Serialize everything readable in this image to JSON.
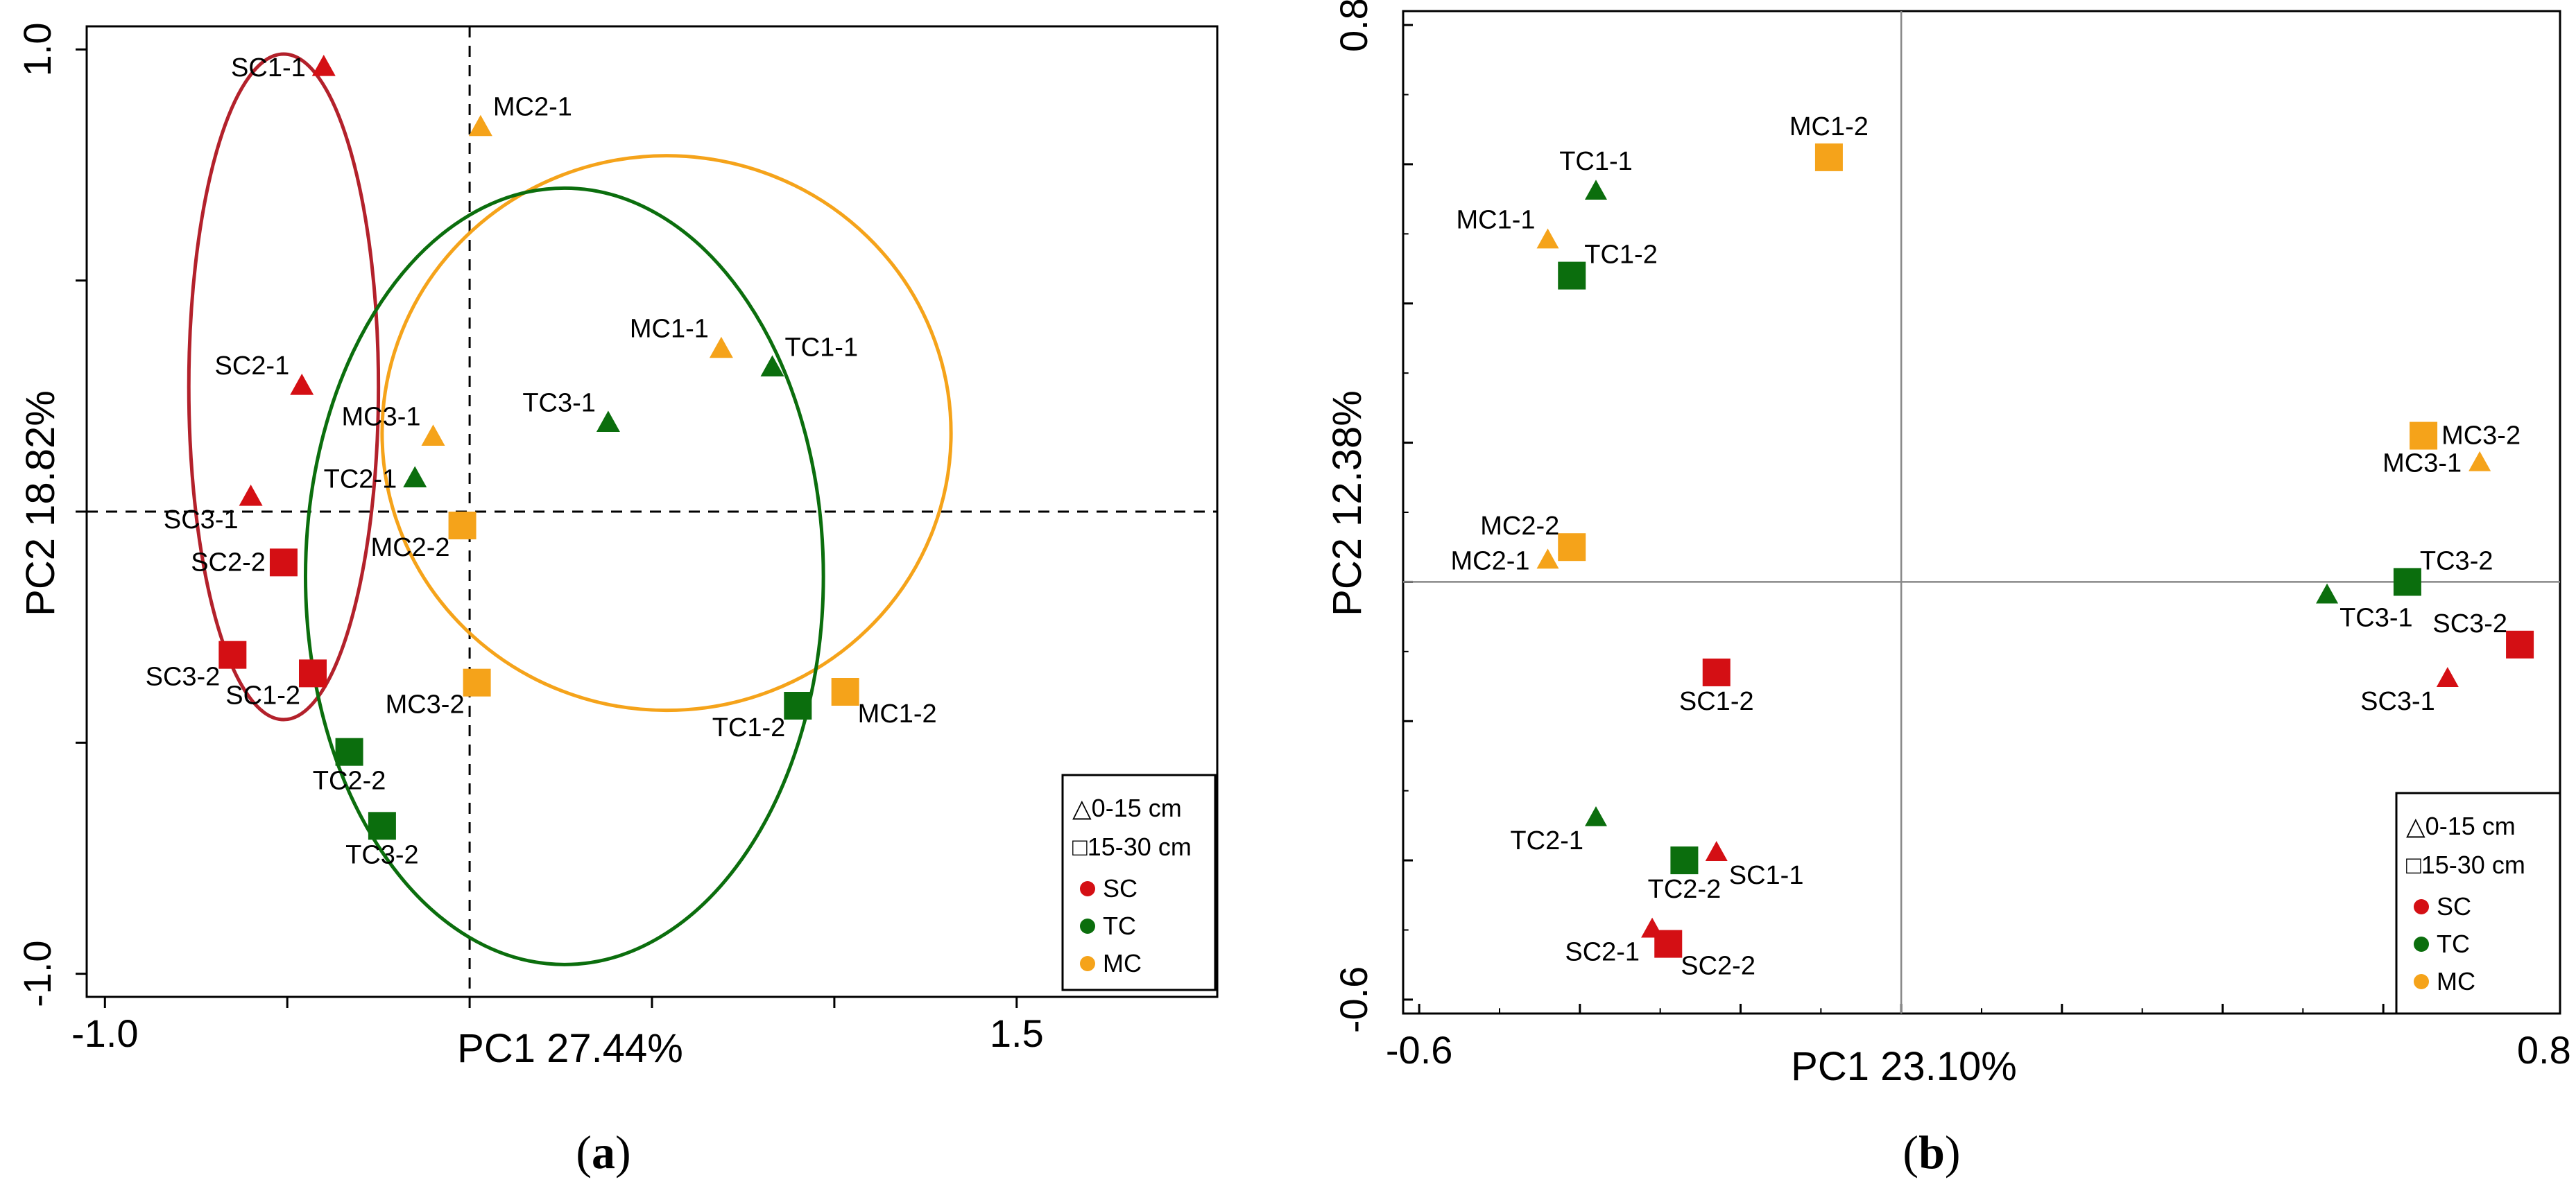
{
  "colors": {
    "SC": "#d40f14",
    "TC": "#0b6e0d",
    "MC": "#f5a31a"
  },
  "chart_data": [
    {
      "panel": "a",
      "panel_label": "a",
      "type": "scatter",
      "xlabel": "PC1 27.44%",
      "ylabel": "PC2 18.82%",
      "xlim": [
        -1.05,
        2.05
      ],
      "ylim": [
        -1.05,
        1.05
      ],
      "xticks": [
        -1.0,
        -0.5,
        0.0,
        0.5,
        1.0,
        1.5
      ],
      "yticks": [
        -1.0,
        -0.5,
        0.0,
        0.5,
        1.0
      ],
      "xtick_labels": [
        {
          "value": -1.0,
          "label": "-1.0"
        },
        {
          "value": 1.5,
          "label": "1.5"
        }
      ],
      "ytick_labels": [
        {
          "value": 1.0,
          "label": "1.0"
        },
        {
          "value": -1.0,
          "label": "-1.0"
        }
      ],
      "reference_lines": {
        "x": 0.0,
        "y": 0.0,
        "style": "dashed"
      },
      "ellipses": [
        {
          "group": "SC",
          "cx": -0.51,
          "cy": 0.27,
          "rx": 0.26,
          "ry": 0.72
        },
        {
          "group": "MC",
          "cx": 0.54,
          "cy": 0.17,
          "rx": 0.78,
          "ry": 0.6
        },
        {
          "group": "TC",
          "cx": 0.26,
          "cy": -0.14,
          "rx": 0.71,
          "ry": 0.84
        }
      ],
      "points": [
        {
          "label": "SC1-1",
          "group": "SC",
          "depth": "0-15 cm",
          "marker": "triangle",
          "x": -0.4,
          "y": 0.96,
          "label_pos": "left"
        },
        {
          "label": "SC2-1",
          "group": "SC",
          "depth": "0-15 cm",
          "marker": "triangle",
          "x": -0.46,
          "y": 0.27,
          "label_pos": "upleft"
        },
        {
          "label": "SC3-1",
          "group": "SC",
          "depth": "0-15 cm",
          "marker": "triangle",
          "x": -0.6,
          "y": 0.03,
          "label_pos": "downleft"
        },
        {
          "label": "SC2-2",
          "group": "SC",
          "depth": "15-30 cm",
          "marker": "square",
          "x": -0.51,
          "y": -0.11,
          "label_pos": "left"
        },
        {
          "label": "SC3-2",
          "group": "SC",
          "depth": "15-30 cm",
          "marker": "square",
          "x": -0.65,
          "y": -0.31,
          "label_pos": "downleft"
        },
        {
          "label": "SC1-2",
          "group": "SC",
          "depth": "15-30 cm",
          "marker": "square",
          "x": -0.43,
          "y": -0.35,
          "label_pos": "downleft"
        },
        {
          "label": "TC2-1",
          "group": "TC",
          "depth": "0-15 cm",
          "marker": "triangle",
          "x": -0.15,
          "y": 0.07,
          "label_pos": "left"
        },
        {
          "label": "TC3-1",
          "group": "TC",
          "depth": "0-15 cm",
          "marker": "triangle",
          "x": 0.38,
          "y": 0.19,
          "label_pos": "upleft"
        },
        {
          "label": "TC1-1",
          "group": "TC",
          "depth": "0-15 cm",
          "marker": "triangle",
          "x": 0.83,
          "y": 0.31,
          "label_pos": "upright"
        },
        {
          "label": "TC2-2",
          "group": "TC",
          "depth": "15-30 cm",
          "marker": "square",
          "x": -0.33,
          "y": -0.52,
          "label_pos": "below"
        },
        {
          "label": "TC3-2",
          "group": "TC",
          "depth": "15-30 cm",
          "marker": "square",
          "x": -0.24,
          "y": -0.68,
          "label_pos": "below"
        },
        {
          "label": "TC1-2",
          "group": "TC",
          "depth": "15-30 cm",
          "marker": "square",
          "x": 0.9,
          "y": -0.42,
          "label_pos": "downleft"
        },
        {
          "label": "MC2-1",
          "group": "MC",
          "depth": "0-15 cm",
          "marker": "triangle",
          "x": 0.03,
          "y": 0.83,
          "label_pos": "upright"
        },
        {
          "label": "MC3-1",
          "group": "MC",
          "depth": "0-15 cm",
          "marker": "triangle",
          "x": -0.1,
          "y": 0.16,
          "label_pos": "upleft"
        },
        {
          "label": "MC1-1",
          "group": "MC",
          "depth": "0-15 cm",
          "marker": "triangle",
          "x": 0.69,
          "y": 0.35,
          "label_pos": "upleft"
        },
        {
          "label": "MC2-2",
          "group": "MC",
          "depth": "15-30 cm",
          "marker": "square",
          "x": -0.02,
          "y": -0.03,
          "label_pos": "downleft"
        },
        {
          "label": "MC3-2",
          "group": "MC",
          "depth": "15-30 cm",
          "marker": "square",
          "x": 0.02,
          "y": -0.37,
          "label_pos": "downleft"
        },
        {
          "label": "MC1-2",
          "group": "MC",
          "depth": "15-30 cm",
          "marker": "square",
          "x": 1.03,
          "y": -0.39,
          "label_pos": "downright"
        }
      ],
      "legend": {
        "position": "bottom-right",
        "shape_entries": [
          "△0-15 cm",
          "□15-30 cm"
        ],
        "color_entries": [
          {
            "group": "SC",
            "label": "SC"
          },
          {
            "group": "TC",
            "label": "TC"
          },
          {
            "group": "MC",
            "label": "MC"
          }
        ]
      }
    },
    {
      "panel": "b",
      "panel_label": "b",
      "type": "scatter",
      "xlabel": "PC1 23.10%",
      "ylabel": "PC2 12.38%",
      "xlim": [
        -0.62,
        0.82
      ],
      "ylim": [
        -0.62,
        0.82
      ],
      "xticks": [
        -0.6,
        -0.4,
        -0.2,
        0.0,
        0.2,
        0.4,
        0.6,
        0.8
      ],
      "yticks": [
        -0.6,
        -0.4,
        -0.2,
        0.0,
        0.2,
        0.4,
        0.6,
        0.8
      ],
      "xtick_labels": [
        {
          "value": -0.6,
          "label": "-0.6"
        },
        {
          "value": 0.8,
          "label": "0.8"
        }
      ],
      "ytick_labels": [
        {
          "value": 0.8,
          "label": "0.8"
        },
        {
          "value": -0.6,
          "label": "-0.6"
        }
      ],
      "reference_lines": {
        "x": 0.0,
        "y": 0.0,
        "style": "solid"
      },
      "points": [
        {
          "label": "MC1-2",
          "group": "MC",
          "depth": "15-30 cm",
          "marker": "square",
          "x": -0.09,
          "y": 0.61,
          "label_pos": "above"
        },
        {
          "label": "TC1-1",
          "group": "TC",
          "depth": "0-15 cm",
          "marker": "triangle",
          "x": -0.38,
          "y": 0.56,
          "label_pos": "above"
        },
        {
          "label": "MC1-1",
          "group": "MC",
          "depth": "0-15 cm",
          "marker": "triangle",
          "x": -0.44,
          "y": 0.49,
          "label_pos": "upleft"
        },
        {
          "label": "TC1-2",
          "group": "TC",
          "depth": "15-30 cm",
          "marker": "square",
          "x": -0.41,
          "y": 0.44,
          "label_pos": "upright"
        },
        {
          "label": "MC3-2",
          "group": "MC",
          "depth": "15-30 cm",
          "marker": "square",
          "x": 0.65,
          "y": 0.21,
          "label_pos": "right"
        },
        {
          "label": "MC3-1",
          "group": "MC",
          "depth": "0-15 cm",
          "marker": "triangle",
          "x": 0.72,
          "y": 0.17,
          "label_pos": "left"
        },
        {
          "label": "MC2-2",
          "group": "MC",
          "depth": "15-30 cm",
          "marker": "square",
          "x": -0.41,
          "y": 0.05,
          "label_pos": "upleft"
        },
        {
          "label": "MC2-1",
          "group": "MC",
          "depth": "0-15 cm",
          "marker": "triangle",
          "x": -0.44,
          "y": 0.03,
          "label_pos": "left"
        },
        {
          "label": "TC3-2",
          "group": "TC",
          "depth": "15-30 cm",
          "marker": "square",
          "x": 0.63,
          "y": 0.0,
          "label_pos": "upright"
        },
        {
          "label": "TC3-1",
          "group": "TC",
          "depth": "0-15 cm",
          "marker": "triangle",
          "x": 0.53,
          "y": -0.02,
          "label_pos": "downright"
        },
        {
          "label": "SC3-2",
          "group": "SC",
          "depth": "15-30 cm",
          "marker": "square",
          "x": 0.77,
          "y": -0.09,
          "label_pos": "upleft"
        },
        {
          "label": "SC3-1",
          "group": "SC",
          "depth": "0-15 cm",
          "marker": "triangle",
          "x": 0.68,
          "y": -0.14,
          "label_pos": "downleft"
        },
        {
          "label": "SC1-2",
          "group": "SC",
          "depth": "15-30 cm",
          "marker": "square",
          "x": -0.23,
          "y": -0.13,
          "label_pos": "below"
        },
        {
          "label": "TC2-1",
          "group": "TC",
          "depth": "0-15 cm",
          "marker": "triangle",
          "x": -0.38,
          "y": -0.34,
          "label_pos": "downleft"
        },
        {
          "label": "TC2-2",
          "group": "TC",
          "depth": "15-30 cm",
          "marker": "square",
          "x": -0.27,
          "y": -0.4,
          "label_pos": "below"
        },
        {
          "label": "SC1-1",
          "group": "SC",
          "depth": "0-15 cm",
          "marker": "triangle",
          "x": -0.23,
          "y": -0.39,
          "label_pos": "downright"
        },
        {
          "label": "SC2-1",
          "group": "SC",
          "depth": "0-15 cm",
          "marker": "triangle",
          "x": -0.31,
          "y": -0.5,
          "label_pos": "downleft"
        },
        {
          "label": "SC2-2",
          "group": "SC",
          "depth": "15-30 cm",
          "marker": "square",
          "x": -0.29,
          "y": -0.52,
          "label_pos": "downright"
        }
      ],
      "legend": {
        "position": "bottom-right",
        "shape_entries": [
          "△0-15 cm",
          "□15-30 cm"
        ],
        "color_entries": [
          {
            "group": "SC",
            "label": "SC"
          },
          {
            "group": "TC",
            "label": "TC"
          },
          {
            "group": "MC",
            "label": "MC"
          }
        ]
      }
    }
  ]
}
